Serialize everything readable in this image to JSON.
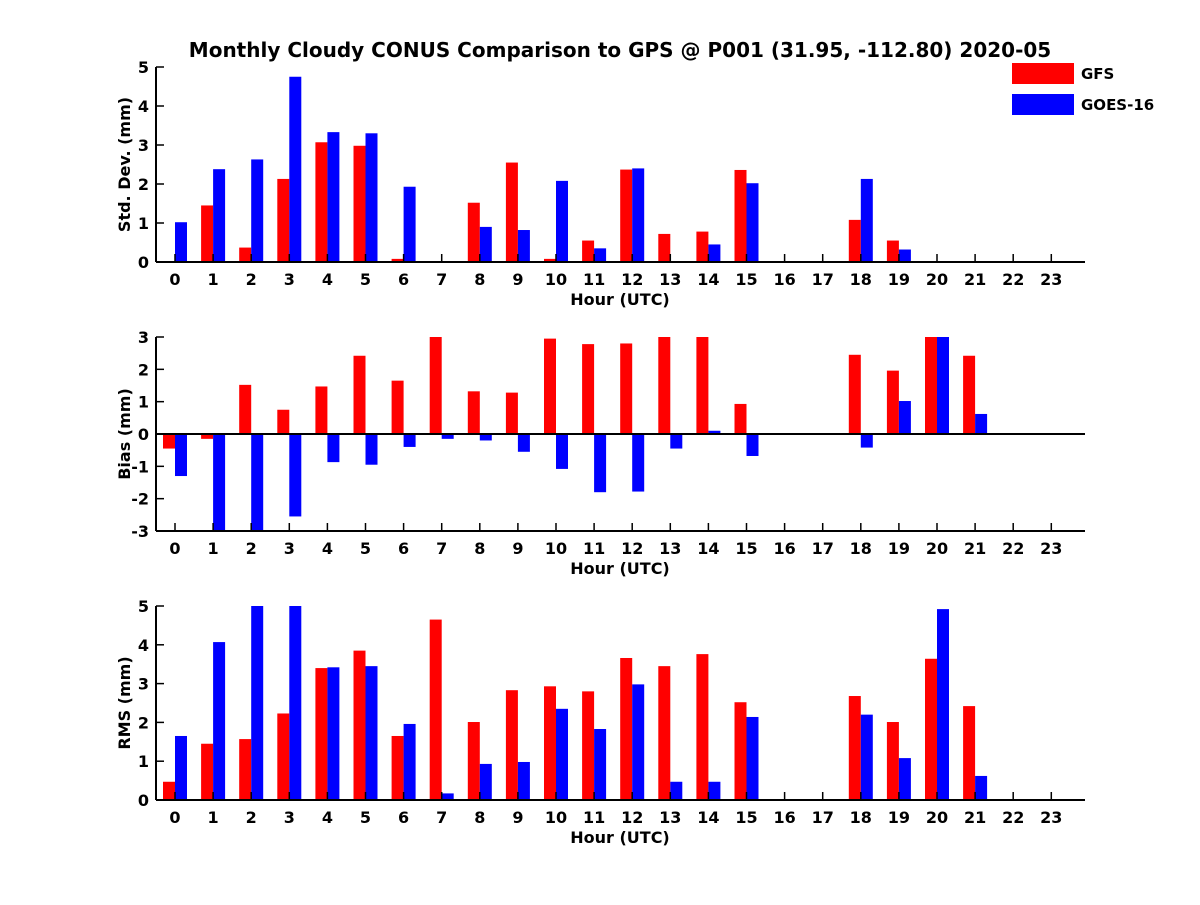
{
  "title": "Monthly Cloudy CONUS Comparison to GPS @ P001 (31.95, -112.80) 2020-05",
  "legend": [
    {
      "name": "GFS",
      "color": "#ff0000"
    },
    {
      "name": "GOES-16",
      "color": "#0000ff"
    }
  ],
  "chart_data": [
    {
      "type": "bar",
      "ylabel": "Std. Dev. (mm)",
      "xlabel": "Hour (UTC)",
      "ylim": [
        0,
        5
      ],
      "yticks": [
        0,
        1,
        2,
        3,
        4,
        5
      ],
      "categories": [
        "0",
        "1",
        "2",
        "3",
        "4",
        "5",
        "6",
        "7",
        "8",
        "9",
        "10",
        "11",
        "12",
        "13",
        "14",
        "15",
        "16",
        "17",
        "18",
        "19",
        "20",
        "21",
        "22",
        "23"
      ],
      "series": [
        {
          "name": "GFS",
          "color": "#ff0000",
          "values": [
            null,
            1.45,
            0.37,
            2.13,
            3.07,
            2.98,
            0.08,
            null,
            1.52,
            2.55,
            0.08,
            0.55,
            2.37,
            0.72,
            0.78,
            2.36,
            null,
            null,
            1.08,
            0.55,
            null,
            null,
            null,
            null
          ]
        },
        {
          "name": "GOES-16",
          "color": "#0000ff",
          "values": [
            1.02,
            2.38,
            2.63,
            4.75,
            3.33,
            3.3,
            1.93,
            null,
            0.9,
            0.82,
            2.08,
            0.35,
            2.4,
            null,
            0.45,
            2.02,
            null,
            null,
            2.13,
            0.32,
            null,
            null,
            null,
            null
          ]
        }
      ]
    },
    {
      "type": "bar",
      "ylabel": "Bias (mm)",
      "xlabel": "Hour (UTC)",
      "ylim": [
        -3,
        3
      ],
      "yticks": [
        -3,
        -2,
        -1,
        0,
        1,
        2,
        3
      ],
      "categories": [
        "0",
        "1",
        "2",
        "3",
        "4",
        "5",
        "6",
        "7",
        "8",
        "9",
        "10",
        "11",
        "12",
        "13",
        "14",
        "15",
        "16",
        "17",
        "18",
        "19",
        "20",
        "21",
        "22",
        "23"
      ],
      "series": [
        {
          "name": "GFS",
          "color": "#ff0000",
          "values": [
            -0.45,
            -0.15,
            1.52,
            0.75,
            1.47,
            2.42,
            1.65,
            3.0,
            1.32,
            1.28,
            2.95,
            2.78,
            2.8,
            3.0,
            3.0,
            0.93,
            null,
            null,
            2.45,
            1.96,
            3.0,
            2.42,
            null,
            null
          ]
        },
        {
          "name": "GOES-16",
          "color": "#0000ff",
          "values": [
            -1.3,
            -3.0,
            -3.0,
            -2.55,
            -0.87,
            -0.95,
            -0.4,
            -0.15,
            -0.2,
            -0.55,
            -1.08,
            -1.8,
            -1.78,
            -0.45,
            0.1,
            -0.68,
            null,
            null,
            -0.42,
            1.02,
            3.0,
            0.62,
            null,
            null
          ]
        }
      ]
    },
    {
      "type": "bar",
      "ylabel": "RMS (mm)",
      "xlabel": "Hour (UTC)",
      "ylim": [
        0,
        5
      ],
      "yticks": [
        0,
        1,
        2,
        3,
        4,
        5
      ],
      "categories": [
        "0",
        "1",
        "2",
        "3",
        "4",
        "5",
        "6",
        "7",
        "8",
        "9",
        "10",
        "11",
        "12",
        "13",
        "14",
        "15",
        "16",
        "17",
        "18",
        "19",
        "20",
        "21",
        "22",
        "23"
      ],
      "series": [
        {
          "name": "GFS",
          "color": "#ff0000",
          "values": [
            0.47,
            1.45,
            1.57,
            2.23,
            3.4,
            3.85,
            1.65,
            4.65,
            2.01,
            2.83,
            2.93,
            2.8,
            3.66,
            3.45,
            3.76,
            2.52,
            null,
            null,
            2.68,
            2.01,
            3.64,
            2.42,
            null,
            null
          ]
        },
        {
          "name": "GOES-16",
          "color": "#0000ff",
          "values": [
            1.65,
            4.07,
            5.0,
            5.0,
            3.42,
            3.45,
            1.96,
            0.17,
            0.93,
            0.98,
            2.35,
            1.83,
            2.98,
            0.47,
            0.47,
            2.14,
            null,
            null,
            2.2,
            1.08,
            4.92,
            0.62,
            null,
            null
          ]
        }
      ]
    }
  ]
}
